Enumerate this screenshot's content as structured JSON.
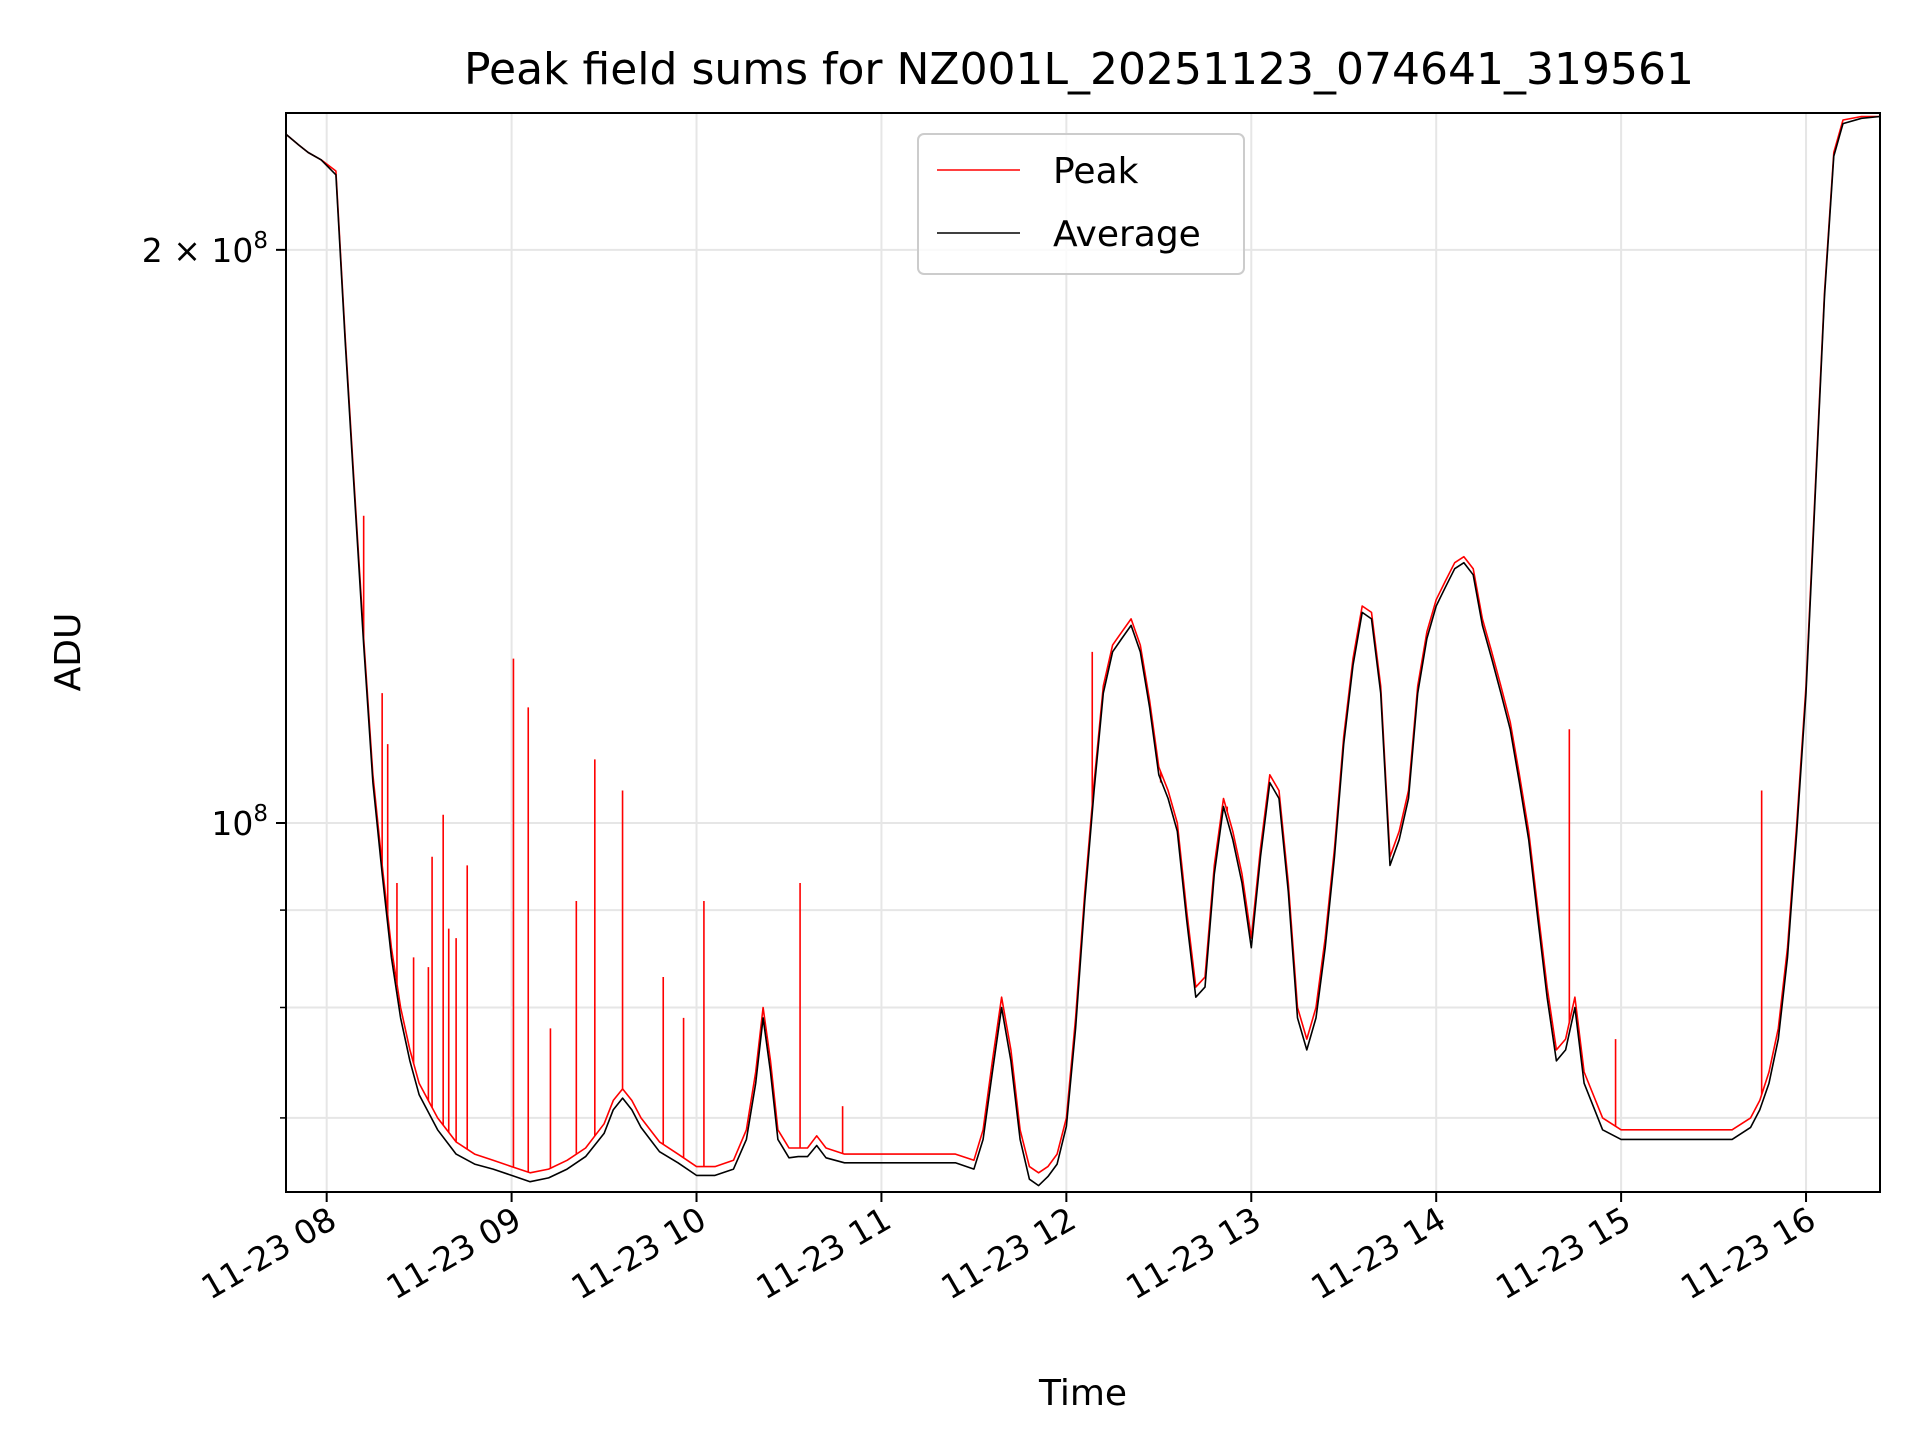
{
  "chart_data": {
    "type": "line",
    "title": "Peak field sums for NZ001L_20251123_074641_319561",
    "xlabel": "Time",
    "ylabel": "ADU",
    "yscale": "log",
    "xlim": [
      7.78,
      16.4
    ],
    "ylim": [
      64000000,
      236000000
    ],
    "grid": true,
    "legend_position": "top-center",
    "x_ticks": [
      {
        "value": 8,
        "label": "11-23 08"
      },
      {
        "value": 9,
        "label": "11-23 09"
      },
      {
        "value": 10,
        "label": "11-23 10"
      },
      {
        "value": 11,
        "label": "11-23 11"
      },
      {
        "value": 12,
        "label": "11-23 12"
      },
      {
        "value": 13,
        "label": "11-23 13"
      },
      {
        "value": 14,
        "label": "11-23 14"
      },
      {
        "value": 15,
        "label": "11-23 15"
      },
      {
        "value": 16,
        "label": "11-23 16"
      }
    ],
    "y_ticks": [
      {
        "value": 200000000,
        "base": "2 × 10",
        "exp": "8"
      },
      {
        "value": 100000000,
        "base": "10",
        "exp": "8"
      }
    ],
    "y_minor_ticks": [
      70000000,
      80000000,
      90000000
    ],
    "series": [
      {
        "name": "Peak",
        "color": "#ff0000",
        "x": [
          7.78,
          7.85,
          7.9,
          7.97,
          8.05,
          8.1,
          8.15,
          8.2,
          8.25,
          8.3,
          8.35,
          8.4,
          8.45,
          8.5,
          8.6,
          8.7,
          8.8,
          8.9,
          9.0,
          9.1,
          9.2,
          9.3,
          9.4,
          9.5,
          9.55,
          9.6,
          9.65,
          9.7,
          9.8,
          9.9,
          10.0,
          10.1,
          10.2,
          10.27,
          10.32,
          10.36,
          10.4,
          10.44,
          10.5,
          10.55,
          10.6,
          10.65,
          10.7,
          10.8,
          10.9,
          11.0,
          11.2,
          11.4,
          11.5,
          11.55,
          11.6,
          11.65,
          11.7,
          11.75,
          11.8,
          11.85,
          11.9,
          11.95,
          12.0,
          12.05,
          12.1,
          12.15,
          12.2,
          12.25,
          12.3,
          12.35,
          12.4,
          12.45,
          12.5,
          12.55,
          12.6,
          12.65,
          12.7,
          12.75,
          12.8,
          12.85,
          12.9,
          12.95,
          13.0,
          13.05,
          13.1,
          13.15,
          13.2,
          13.25,
          13.3,
          13.35,
          13.4,
          13.45,
          13.5,
          13.55,
          13.6,
          13.65,
          13.7,
          13.75,
          13.8,
          13.85,
          13.9,
          13.95,
          14.0,
          14.05,
          14.1,
          14.15,
          14.2,
          14.25,
          14.3,
          14.35,
          14.4,
          14.45,
          14.5,
          14.55,
          14.6,
          14.65,
          14.7,
          14.75,
          14.8,
          14.9,
          15.0,
          15.1,
          15.2,
          15.3,
          15.4,
          15.5,
          15.6,
          15.7,
          15.75,
          15.8,
          15.85,
          15.9,
          15.95,
          16.0,
          16.05,
          16.1,
          16.15,
          16.2,
          16.3,
          16.4
        ],
        "y": [
          230000000,
          227000000,
          225000000,
          223000000,
          220000000,
          180000000,
          150000000,
          125000000,
          106000000,
          95000000,
          86000000,
          80000000,
          76000000,
          73000000,
          70000000,
          68000000,
          67000000,
          66500000,
          66000000,
          65500000,
          65800000,
          66500000,
          67500000,
          69500000,
          71500000,
          72500000,
          71500000,
          70000000,
          68000000,
          67000000,
          66000000,
          66000000,
          66500000,
          69000000,
          74000000,
          80000000,
          75000000,
          69000000,
          67500000,
          67500000,
          67500000,
          68500000,
          67500000,
          67000000,
          67000000,
          67000000,
          67000000,
          67000000,
          66500000,
          69000000,
          75000000,
          81000000,
          76000000,
          69000000,
          66000000,
          65500000,
          66000000,
          67000000,
          70000000,
          79000000,
          92000000,
          105000000,
          118000000,
          124000000,
          126000000,
          128000000,
          124000000,
          116000000,
          107000000,
          104000000,
          100000000,
          90000000,
          82000000,
          83000000,
          95000000,
          103000000,
          99000000,
          94000000,
          87000000,
          97000000,
          106000000,
          104000000,
          93000000,
          80000000,
          77000000,
          80000000,
          87000000,
          97000000,
          111000000,
          122000000,
          130000000,
          129000000,
          118000000,
          96000000,
          99000000,
          104000000,
          118000000,
          126000000,
          131000000,
          134000000,
          137000000,
          138000000,
          136000000,
          128000000,
          123000000,
          118000000,
          113000000,
          106000000,
          99000000,
          90000000,
          82000000,
          76000000,
          77000000,
          81000000,
          74000000,
          70000000,
          69000000,
          69000000,
          69000000,
          69000000,
          69000000,
          69000000,
          69000000,
          70000000,
          71500000,
          74000000,
          78000000,
          86000000,
          100000000,
          118000000,
          150000000,
          190000000,
          225000000,
          234000000,
          235000000,
          235000000
        ]
      },
      {
        "name": "Average",
        "color": "#000000",
        "x": [
          7.78,
          7.85,
          7.9,
          7.97,
          8.05,
          8.1,
          8.15,
          8.2,
          8.25,
          8.3,
          8.35,
          8.4,
          8.45,
          8.5,
          8.6,
          8.7,
          8.8,
          8.9,
          9.0,
          9.1,
          9.2,
          9.3,
          9.4,
          9.5,
          9.55,
          9.6,
          9.65,
          9.7,
          9.8,
          9.9,
          10.0,
          10.1,
          10.2,
          10.27,
          10.32,
          10.36,
          10.4,
          10.44,
          10.5,
          10.55,
          10.6,
          10.65,
          10.7,
          10.8,
          10.9,
          11.0,
          11.2,
          11.4,
          11.5,
          11.55,
          11.6,
          11.65,
          11.7,
          11.75,
          11.8,
          11.85,
          11.9,
          11.95,
          12.0,
          12.05,
          12.1,
          12.15,
          12.2,
          12.25,
          12.3,
          12.35,
          12.4,
          12.45,
          12.5,
          12.55,
          12.6,
          12.65,
          12.7,
          12.75,
          12.8,
          12.85,
          12.9,
          12.95,
          13.0,
          13.05,
          13.1,
          13.15,
          13.2,
          13.25,
          13.3,
          13.35,
          13.4,
          13.45,
          13.5,
          13.55,
          13.6,
          13.65,
          13.7,
          13.75,
          13.8,
          13.85,
          13.9,
          13.95,
          14.0,
          14.05,
          14.1,
          14.15,
          14.2,
          14.25,
          14.3,
          14.35,
          14.4,
          14.45,
          14.5,
          14.55,
          14.6,
          14.65,
          14.7,
          14.75,
          14.8,
          14.9,
          15.0,
          15.1,
          15.2,
          15.3,
          15.4,
          15.5,
          15.6,
          15.7,
          15.75,
          15.8,
          15.85,
          15.9,
          15.95,
          16.0,
          16.05,
          16.1,
          16.15,
          16.2,
          16.3,
          16.4
        ],
        "y": [
          230000000,
          227000000,
          225000000,
          223000000,
          219000000,
          179000000,
          149000000,
          124000000,
          105000000,
          94000000,
          85000000,
          79000000,
          75000000,
          72000000,
          69000000,
          67000000,
          66200000,
          65800000,
          65300000,
          64800000,
          65100000,
          65800000,
          66800000,
          68700000,
          70700000,
          71700000,
          70700000,
          69200000,
          67200000,
          66300000,
          65300000,
          65300000,
          65800000,
          68200000,
          73000000,
          79000000,
          74000000,
          68200000,
          66700000,
          66800000,
          66800000,
          67700000,
          66700000,
          66300000,
          66300000,
          66300000,
          66300000,
          66300000,
          65800000,
          68200000,
          74000000,
          80000000,
          75000000,
          68200000,
          65000000,
          64500000,
          65200000,
          66200000,
          69300000,
          78000000,
          91000000,
          104000000,
          117000000,
          123000000,
          125000000,
          127000000,
          123000000,
          115000000,
          106000000,
          103000000,
          99000000,
          89000000,
          81000000,
          82000000,
          94000000,
          102000000,
          98000000,
          93000000,
          86000000,
          96000000,
          105000000,
          103000000,
          92000000,
          79000000,
          76000000,
          79000000,
          86000000,
          96000000,
          110000000,
          121000000,
          129000000,
          128000000,
          117000000,
          95000000,
          98000000,
          103000000,
          117000000,
          125000000,
          130000000,
          133000000,
          136000000,
          137000000,
          135000000,
          127000000,
          122000000,
          117000000,
          112000000,
          105000000,
          98000000,
          89000000,
          81000000,
          75000000,
          76000000,
          80000000,
          73000000,
          69000000,
          68200000,
          68200000,
          68200000,
          68200000,
          68200000,
          68200000,
          68200000,
          69200000,
          70700000,
          73000000,
          77000000,
          85000000,
          99000000,
          117000000,
          149000000,
          189000000,
          224000000,
          233000000,
          234500000,
          235000000
        ]
      }
    ],
    "spikes": {
      "series": "Peak",
      "points": [
        {
          "x": 8.2,
          "y": 145000000
        },
        {
          "x": 8.3,
          "y": 117000000
        },
        {
          "x": 8.33,
          "y": 110000000
        },
        {
          "x": 8.38,
          "y": 93000000
        },
        {
          "x": 8.47,
          "y": 85000000
        },
        {
          "x": 8.55,
          "y": 84000000
        },
        {
          "x": 8.57,
          "y": 96000000
        },
        {
          "x": 8.63,
          "y": 101000000
        },
        {
          "x": 8.66,
          "y": 88000000
        },
        {
          "x": 8.7,
          "y": 87000000
        },
        {
          "x": 8.76,
          "y": 95000000
        },
        {
          "x": 9.01,
          "y": 122000000
        },
        {
          "x": 9.09,
          "y": 115000000
        },
        {
          "x": 9.21,
          "y": 78000000
        },
        {
          "x": 9.35,
          "y": 91000000
        },
        {
          "x": 9.45,
          "y": 108000000
        },
        {
          "x": 9.6,
          "y": 104000000
        },
        {
          "x": 9.82,
          "y": 83000000
        },
        {
          "x": 9.93,
          "y": 79000000
        },
        {
          "x": 10.04,
          "y": 91000000
        },
        {
          "x": 10.56,
          "y": 93000000
        },
        {
          "x": 10.79,
          "y": 71000000
        },
        {
          "x": 12.14,
          "y": 123000000
        },
        {
          "x": 12.51,
          "y": 105000000
        },
        {
          "x": 12.87,
          "y": 102000000
        },
        {
          "x": 14.72,
          "y": 112000000
        },
        {
          "x": 14.97,
          "y": 77000000
        },
        {
          "x": 15.76,
          "y": 104000000
        }
      ]
    }
  }
}
